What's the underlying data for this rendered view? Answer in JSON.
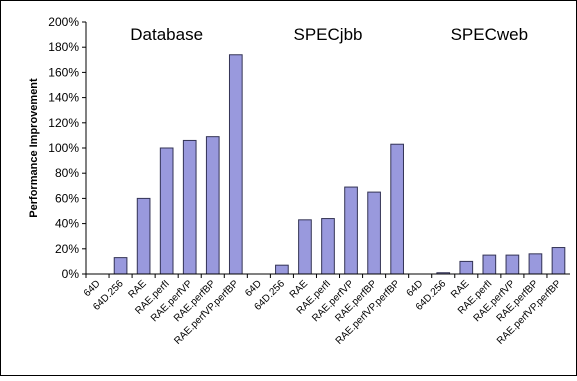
{
  "chart_data": {
    "type": "bar",
    "ylabel": "Performance Improvement",
    "ylim": [
      0,
      200
    ],
    "ytick_step": 20,
    "ytick_suffix": "%",
    "grid": false,
    "legend": "none",
    "bar_color": "#9999dd",
    "bar_edge_color": "#333355",
    "groups": [
      {
        "title": "Database",
        "categories": [
          "64D",
          "64D.256",
          "RAE",
          "RAE.perfI",
          "RAE.perfVP",
          "RAE.perfBP",
          "RAE.perfVP.perfBP"
        ],
        "values": [
          0,
          13,
          60,
          100,
          106,
          109,
          174
        ]
      },
      {
        "title": "SPECjbb",
        "categories": [
          "64D",
          "64D.256",
          "RAE",
          "RAE.perfI",
          "RAE.perfVP",
          "RAE.perfBP",
          "RAE.perfVP.perfBP"
        ],
        "values": [
          0,
          7,
          43,
          44,
          69,
          65,
          103
        ]
      },
      {
        "title": "SPECweb",
        "categories": [
          "64D",
          "64D.256",
          "RAE",
          "RAE.perfI",
          "RAE.perfVP",
          "RAE.perfBP",
          "RAE.perfVP.perfBP"
        ],
        "values": [
          0,
          1,
          10,
          15,
          15,
          16,
          21
        ]
      }
    ]
  }
}
